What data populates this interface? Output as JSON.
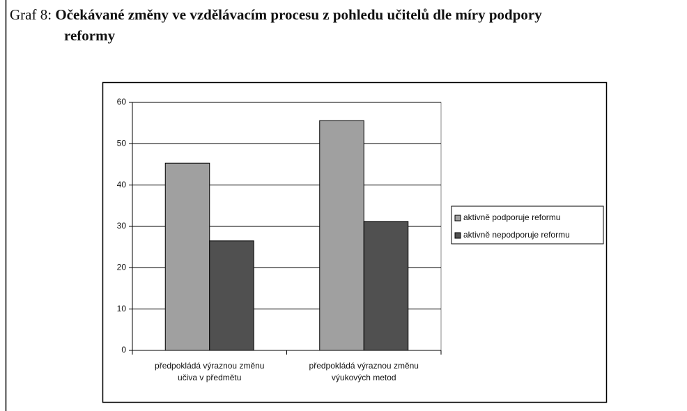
{
  "label": "Graf 8:",
  "chart_data": {
    "type": "bar",
    "title": "Očekávané změny ve vzdělávacím procesu z pohledu učitelů dle míry podpory",
    "title_line2": "reformy",
    "categories": [
      "předpokládá výraznou změnu učiva v předmětu",
      "předpokládá výraznou změnu výukových metod"
    ],
    "series": [
      {
        "name": "aktivně podporuje reformu",
        "color": "#a0a0a0",
        "values": [
          45.3,
          55.6
        ]
      },
      {
        "name": "aktivně nepodporuje reformu",
        "color": "#505050",
        "values": [
          26.5,
          31.2
        ]
      }
    ],
    "ylim": [
      0,
      60
    ],
    "yticks": [
      0,
      10,
      20,
      30,
      40,
      50,
      60
    ],
    "grid": true,
    "legend": "right"
  }
}
